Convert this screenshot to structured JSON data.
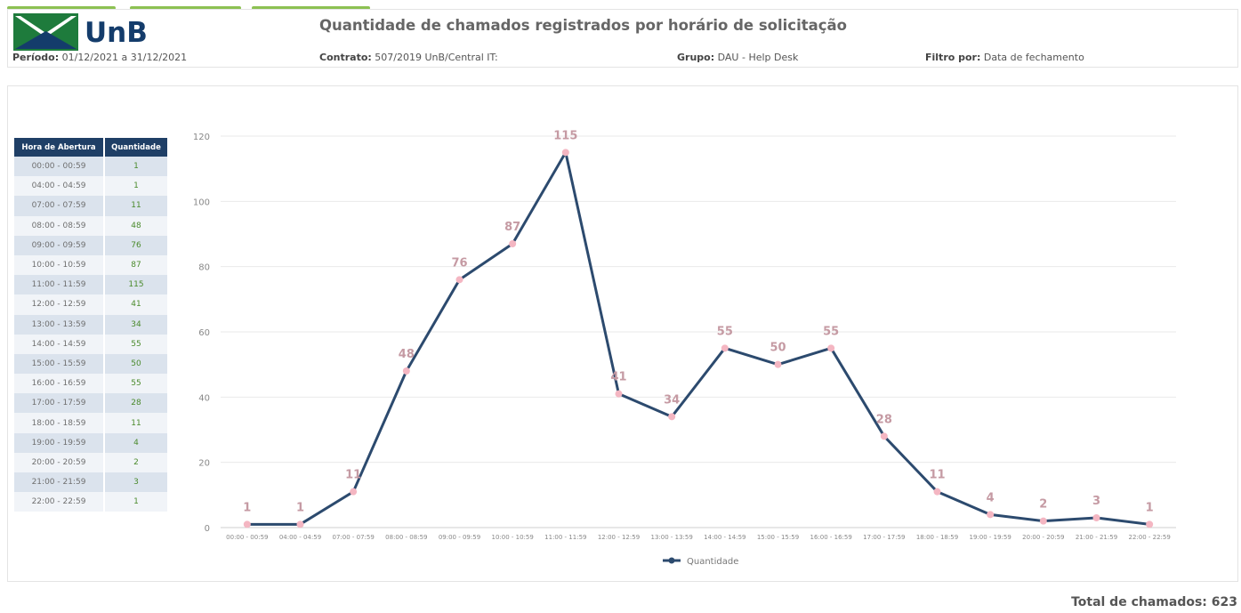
{
  "header": {
    "logo_text": "UnB",
    "title": "Quantidade de chamados registrados por horário de solicitação",
    "periodo_label": "Período:",
    "periodo_value": "01/12/2021 a 31/12/2021",
    "contrato_label": "Contrato:",
    "contrato_value": "507/2019 UnB/Central IT:",
    "grupo_label": "Grupo:",
    "grupo_value": "DAU - Help Desk",
    "filtro_label": "Filtro por:",
    "filtro_value": "Data de fechamento"
  },
  "table": {
    "col1": "Hora de Abertura",
    "col2": "Quantidade",
    "rows": [
      {
        "hora": "00:00 - 00:59",
        "qtd": "1"
      },
      {
        "hora": "04:00 - 04:59",
        "qtd": "1"
      },
      {
        "hora": "07:00 - 07:59",
        "qtd": "11"
      },
      {
        "hora": "08:00 - 08:59",
        "qtd": "48"
      },
      {
        "hora": "09:00 - 09:59",
        "qtd": "76"
      },
      {
        "hora": "10:00 - 10:59",
        "qtd": "87"
      },
      {
        "hora": "11:00 - 11:59",
        "qtd": "115"
      },
      {
        "hora": "12:00 - 12:59",
        "qtd": "41"
      },
      {
        "hora": "13:00 - 13:59",
        "qtd": "34"
      },
      {
        "hora": "14:00 - 14:59",
        "qtd": "55"
      },
      {
        "hora": "15:00 - 15:59",
        "qtd": "50"
      },
      {
        "hora": "16:00 - 16:59",
        "qtd": "55"
      },
      {
        "hora": "17:00 - 17:59",
        "qtd": "28"
      },
      {
        "hora": "18:00 - 18:59",
        "qtd": "11"
      },
      {
        "hora": "19:00 - 19:59",
        "qtd": "4"
      },
      {
        "hora": "20:00 - 20:59",
        "qtd": "2"
      },
      {
        "hora": "21:00 - 21:59",
        "qtd": "3"
      },
      {
        "hora": "22:00 - 22:59",
        "qtd": "1"
      }
    ]
  },
  "chart_data": {
    "type": "line",
    "categories": [
      "00:00 - 00:59",
      "04:00 - 04:59",
      "07:00 - 07:59",
      "08:00 - 08:59",
      "09:00 - 09:59",
      "10:00 - 10:59",
      "11:00 - 11:59",
      "12:00 - 12:59",
      "13:00 - 13:59",
      "14:00 - 14:59",
      "15:00 - 15:59",
      "16:00 - 16:59",
      "17:00 - 17:59",
      "18:00 - 18:59",
      "19:00 - 19:59",
      "20:00 - 20:59",
      "21:00 - 21:59",
      "22:00 - 22:59"
    ],
    "series": [
      {
        "name": "Quantidade",
        "values": [
          1,
          1,
          11,
          48,
          76,
          87,
          115,
          41,
          34,
          55,
          50,
          55,
          28,
          11,
          4,
          2,
          3,
          1
        ]
      }
    ],
    "ylim": [
      0,
      120
    ],
    "yticks": [
      0,
      20,
      40,
      60,
      80,
      100,
      120
    ],
    "grid": true,
    "legend": "bottom",
    "colors": {
      "line": "#2c4a6e",
      "marker": "#f4b6c2",
      "label": "#c59aa3"
    }
  },
  "footer": {
    "total_label": "Total de chamados: 623"
  }
}
